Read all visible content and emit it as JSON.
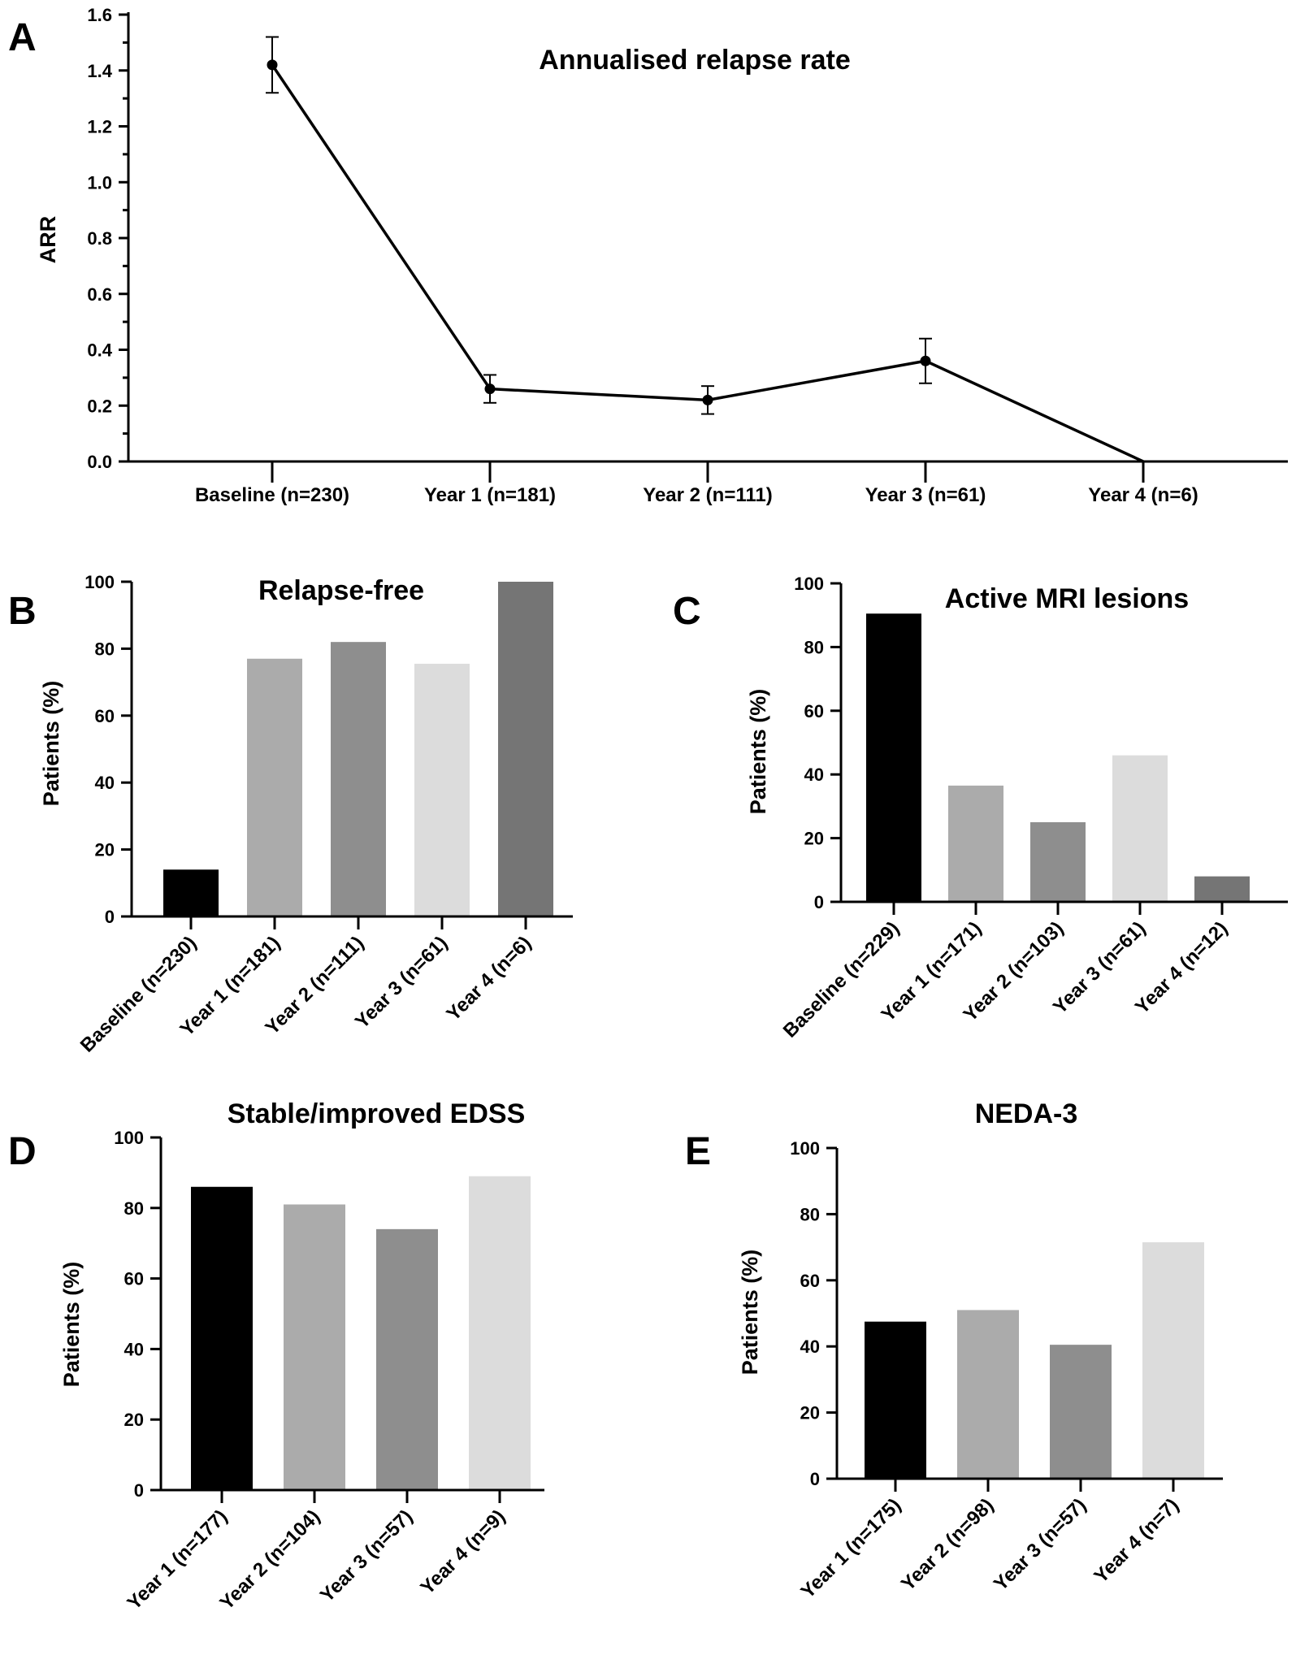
{
  "chart_data": [
    {
      "panel": "A",
      "type": "line",
      "title": "Annualised relapse rate",
      "xlabel": "",
      "ylabel": "ARR",
      "ylim": [
        0,
        1.6
      ],
      "y_ticks": [
        "0.0",
        "0.2",
        "0.4",
        "0.6",
        "0.8",
        "1.0",
        "1.2",
        "1.4",
        "1.6"
      ],
      "categories": [
        "Baseline (n=230)",
        "Year 1 (n=181)",
        "Year 2 (n=111)",
        "Year 3 (n=61)",
        "Year 4 (n=6)"
      ],
      "values": [
        1.42,
        0.26,
        0.22,
        0.36,
        0.0
      ],
      "error_low": [
        1.32,
        0.21,
        0.17,
        0.28,
        null
      ],
      "error_high": [
        1.52,
        0.31,
        0.27,
        0.44,
        null
      ]
    },
    {
      "panel": "B",
      "type": "bar",
      "title": "Relapse-free",
      "ylabel": "Patients (%)",
      "ylim": [
        0,
        100
      ],
      "y_ticks": [
        "0",
        "20",
        "40",
        "60",
        "80",
        "100"
      ],
      "categories": [
        "Baseline (n=230)",
        "Year 1 (n=181)",
        "Year 2 (n=111)",
        "Year 3 (n=61)",
        "Year 4 (n=6)"
      ],
      "values": [
        14,
        77,
        82,
        75.5,
        100
      ],
      "colors": [
        "#000000",
        "#ababab",
        "#8e8e8e",
        "#dcdcdc",
        "#757575"
      ]
    },
    {
      "panel": "C",
      "type": "bar",
      "title": "Active MRI lesions",
      "ylabel": "Patients (%)",
      "ylim": [
        0,
        100
      ],
      "y_ticks": [
        "0",
        "20",
        "40",
        "60",
        "80",
        "100"
      ],
      "categories": [
        "Baseline (n=229)",
        "Year 1 (n=171)",
        "Year 2 (n=103)",
        "Year 3 (n=61)",
        "Year 4 (n=12)"
      ],
      "values": [
        90.5,
        36.5,
        25,
        46,
        8
      ],
      "colors": [
        "#000000",
        "#ababab",
        "#8e8e8e",
        "#dcdcdc",
        "#757575"
      ]
    },
    {
      "panel": "D",
      "type": "bar",
      "title": "Stable/improved EDSS",
      "ylabel": "Patients (%)",
      "ylim": [
        0,
        100
      ],
      "y_ticks": [
        "0",
        "20",
        "40",
        "60",
        "80",
        "100"
      ],
      "categories": [
        "Year 1 (n=177)",
        "Year 2 (n=104)",
        "Year 3 (n=57)",
        "Year 4 (n=9)"
      ],
      "values": [
        86,
        81,
        74,
        89
      ],
      "colors": [
        "#000000",
        "#ababab",
        "#8e8e8e",
        "#dcdcdc"
      ]
    },
    {
      "panel": "E",
      "type": "bar",
      "title": "NEDA-3",
      "ylabel": "Patients (%)",
      "ylim": [
        0,
        100
      ],
      "y_ticks": [
        "0",
        "20",
        "40",
        "60",
        "80",
        "100"
      ],
      "categories": [
        "Year 1 (n=175)",
        "Year 2 (n=98)",
        "Year 3 (n=57)",
        "Year 4 (n=7)"
      ],
      "values": [
        47.5,
        51,
        40.5,
        71.5
      ],
      "colors": [
        "#000000",
        "#ababab",
        "#8e8e8e",
        "#dcdcdc"
      ]
    }
  ]
}
